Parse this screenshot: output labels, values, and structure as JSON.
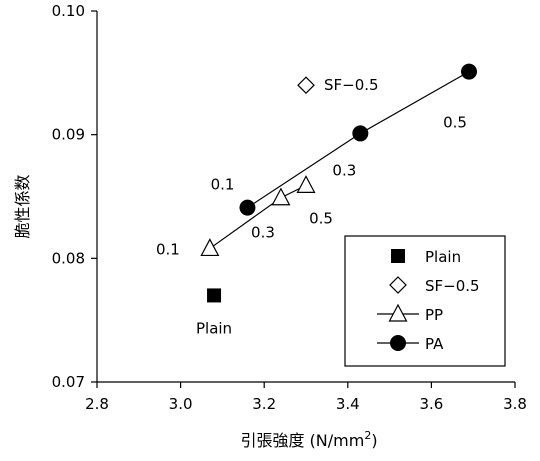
{
  "chart_data": {
    "type": "scatter",
    "title": "",
    "xlabel": "引張強度 (N/mm",
    "xlabel_superscript": "2",
    "xlabel_suffix": ")",
    "ylabel": "脆性係数",
    "xlim": [
      2.8,
      3.8
    ],
    "ylim": [
      0.07,
      0.1
    ],
    "xticks": [
      2.8,
      3.0,
      3.2,
      3.4,
      3.6,
      3.8
    ],
    "xtick_labels": [
      "2.8",
      "3.0",
      "3.2",
      "3.4",
      "3.6",
      "3.8"
    ],
    "yticks": [
      0.07,
      0.08,
      0.09,
      0.1
    ],
    "ytick_labels": [
      "0.07",
      "0.08",
      "0.09",
      "0.10"
    ],
    "grid": false,
    "legend_position": "bottom-right",
    "series": [
      {
        "name": "Plain",
        "marker": "filled-square",
        "line": false,
        "points": [
          {
            "x": 3.08,
            "y": 0.077,
            "label": "Plain"
          }
        ]
      },
      {
        "name": "SF-0.5",
        "marker": "open-diamond",
        "line": false,
        "points": [
          {
            "x": 3.3,
            "y": 0.094,
            "label": "SF−0.5"
          }
        ]
      },
      {
        "name": "PP",
        "marker": "open-triangle",
        "line": true,
        "points": [
          {
            "x": 3.07,
            "y": 0.0808,
            "label": "0.1"
          },
          {
            "x": 3.24,
            "y": 0.0849,
            "label": "0.3"
          },
          {
            "x": 3.3,
            "y": 0.0859,
            "label": "0.5"
          }
        ]
      },
      {
        "name": "PA",
        "marker": "filled-circle",
        "line": true,
        "points": [
          {
            "x": 3.16,
            "y": 0.0841,
            "label": "0.1"
          },
          {
            "x": 3.43,
            "y": 0.0901,
            "label": "0.3"
          },
          {
            "x": 3.69,
            "y": 0.0951,
            "label": "0.5"
          }
        ]
      }
    ],
    "legend": [
      {
        "label": "Plain",
        "marker": "filled-square",
        "line": false
      },
      {
        "label": "SF−0.5",
        "marker": "open-diamond",
        "line": false
      },
      {
        "label": "PP",
        "marker": "open-triangle",
        "line": true
      },
      {
        "label": "PA",
        "marker": "filled-circle",
        "line": true
      }
    ],
    "colors": {
      "ink": "#000000",
      "background": "#ffffff"
    }
  }
}
